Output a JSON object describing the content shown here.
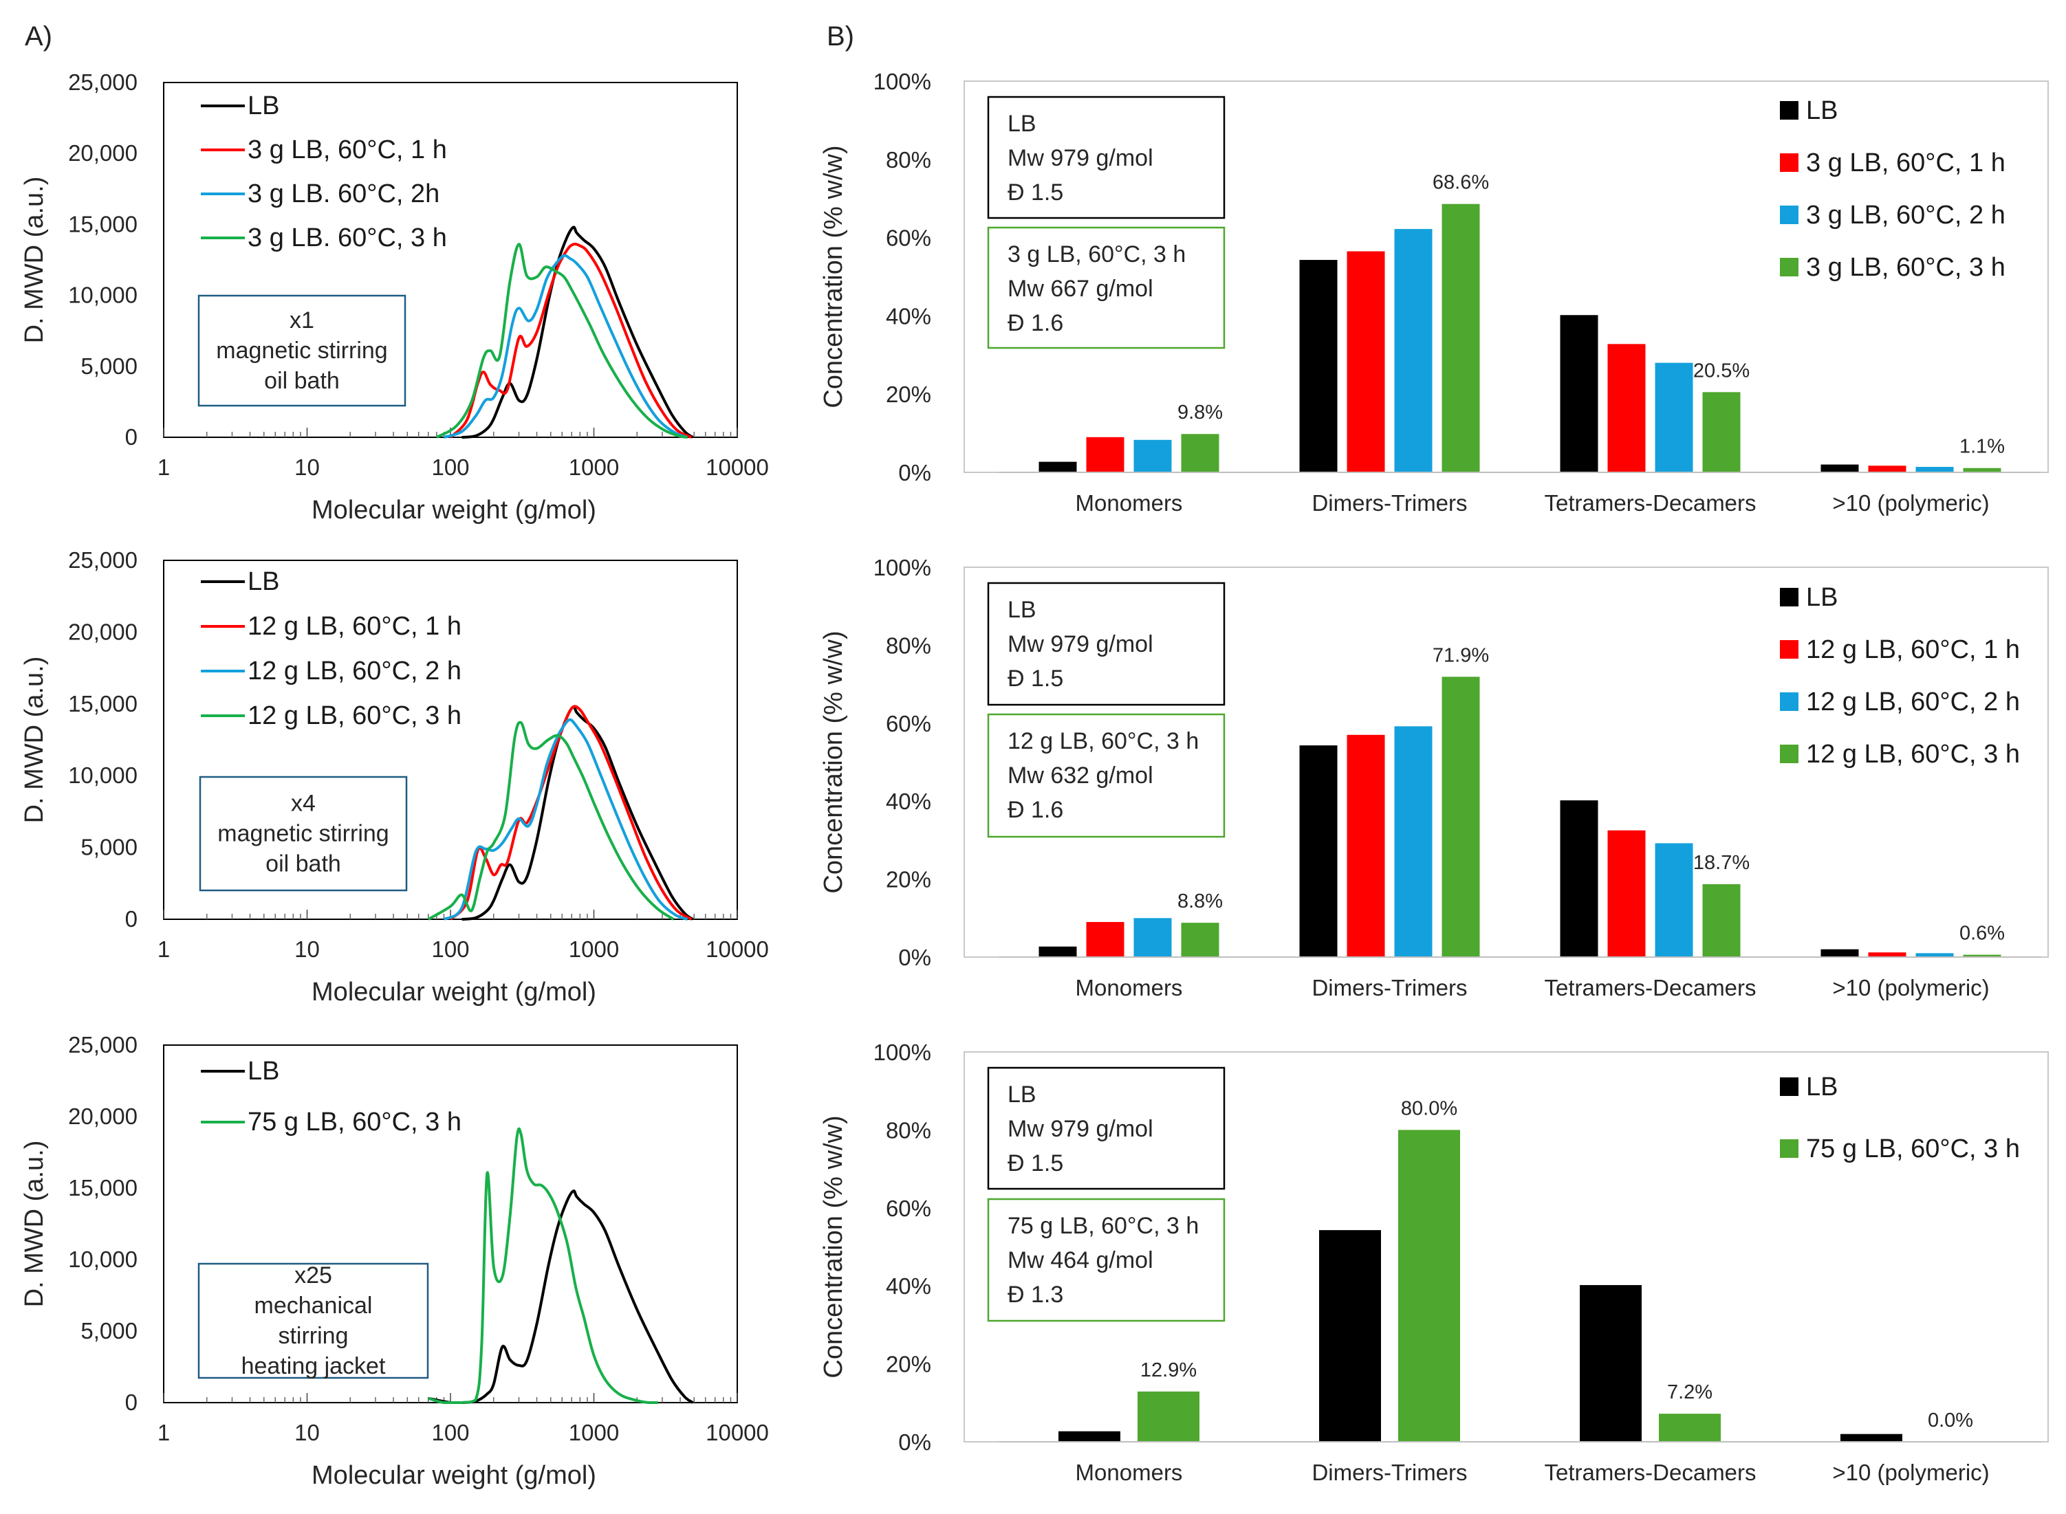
{
  "figure": {
    "panel_a_label": "A)",
    "panel_b_label": "B)"
  },
  "colors": {
    "LB": "#000000",
    "h1": "#ff0000",
    "h2": "#14a0dc",
    "h3_line": "#18b04a",
    "h3_bar": "#4ea72e",
    "box_stirring": "#1f5c82",
    "box_lb": "#000000",
    "box_result": "#4ea72e"
  },
  "chart_data": [
    {
      "id": "A1",
      "type": "line",
      "x_scale": "log",
      "xlabel": "Molecular weight (g/mol)",
      "ylabel": "D. MWD (a.u.)",
      "xlim": [
        1,
        10000
      ],
      "ylim": [
        0,
        25000
      ],
      "x_ticks": [
        "1",
        "10",
        "100",
        "1000",
        "10000"
      ],
      "y_ticks": [
        "0",
        "5,000",
        "10,000",
        "15,000",
        "20,000",
        "25,000"
      ],
      "annotation": [
        "x1",
        "magnetic stirring",
        "oil bath"
      ],
      "series": [
        {
          "name": "LB",
          "color": "#000000",
          "x": [
            120,
            150,
            180,
            200,
            230,
            260,
            300,
            340,
            400,
            480,
            560,
            650,
            720,
            760,
            850,
            1000,
            1200,
            1500,
            2000,
            2700,
            3500,
            4300,
            4900
          ],
          "y": [
            0,
            100,
            600,
            1300,
            2800,
            3800,
            2600,
            2900,
            5500,
            9500,
            12300,
            14100,
            14800,
            14400,
            13900,
            13300,
            12000,
            9500,
            6500,
            3800,
            1600,
            400,
            0
          ]
        },
        {
          "name": "3 g LB, 60°C, 1 h",
          "color": "#ff0000",
          "x": [
            100,
            130,
            155,
            170,
            190,
            220,
            250,
            300,
            340,
            400,
            480,
            560,
            650,
            720,
            800,
            900,
            1100,
            1400,
            1800,
            2300,
            3000,
            3800,
            4800
          ],
          "y": [
            0,
            1200,
            3800,
            4600,
            3700,
            3300,
            3400,
            7000,
            6400,
            7400,
            10000,
            12000,
            13200,
            13600,
            13500,
            13100,
            11700,
            9300,
            6500,
            3900,
            1800,
            500,
            0
          ]
        },
        {
          "name": "3 g LB. 60°C, 2h",
          "color": "#14a0dc",
          "x": [
            90,
            120,
            150,
            175,
            200,
            230,
            270,
            300,
            350,
            400,
            470,
            550,
            620,
            680,
            750,
            900,
            1100,
            1400,
            1800,
            2300,
            2900,
            3700,
            4500
          ],
          "y": [
            0,
            400,
            1500,
            2600,
            2800,
            4400,
            8000,
            9100,
            8200,
            9000,
            11200,
            12300,
            12800,
            12600,
            12300,
            11300,
            9300,
            6900,
            4500,
            2500,
            1100,
            300,
            0
          ]
        },
        {
          "name": "3 g LB. 60°C, 3 h",
          "color": "#18b04a",
          "x": [
            80,
            110,
            140,
            170,
            190,
            220,
            260,
            300,
            340,
            400,
            460,
            540,
            620,
            700,
            800,
            950,
            1150,
            1450,
            1850,
            2400,
            3100,
            3900,
            4500
          ],
          "y": [
            0,
            800,
            2500,
            5600,
            6100,
            5700,
            11000,
            13600,
            11400,
            11300,
            12000,
            11700,
            11300,
            10400,
            9300,
            7800,
            6000,
            4200,
            2600,
            1300,
            500,
            100,
            0
          ]
        }
      ]
    },
    {
      "id": "A2",
      "type": "line",
      "x_scale": "log",
      "xlabel": "Molecular weight (g/mol)",
      "ylabel": "D. MWD (a.u.)",
      "xlim": [
        1,
        10000
      ],
      "ylim": [
        0,
        25000
      ],
      "x_ticks": [
        "1",
        "10",
        "100",
        "1000",
        "10000"
      ],
      "y_ticks": [
        "0",
        "5,000",
        "10,000",
        "15,000",
        "20,000",
        "25,000"
      ],
      "annotation": [
        "x4",
        "magnetic stirring",
        "oil bath"
      ],
      "series": [
        {
          "name": "LB",
          "color": "#000000",
          "x": [
            120,
            150,
            180,
            200,
            230,
            260,
            300,
            340,
            400,
            480,
            560,
            650,
            720,
            760,
            850,
            1000,
            1200,
            1500,
            2000,
            2700,
            3500,
            4300,
            4900
          ],
          "y": [
            0,
            100,
            600,
            1300,
            2800,
            3800,
            2600,
            2900,
            5500,
            9500,
            12300,
            14100,
            14800,
            14400,
            13900,
            13300,
            12000,
            9500,
            6500,
            3800,
            1600,
            400,
            0
          ]
        },
        {
          "name": "12 g LB, 60°C, 1 h",
          "color": "#ff0000",
          "x": [
            100,
            130,
            155,
            175,
            200,
            225,
            250,
            300,
            340,
            400,
            480,
            560,
            650,
            720,
            800,
            900,
            1100,
            1400,
            1800,
            2300,
            3000,
            3800,
            4800
          ],
          "y": [
            0,
            1200,
            4800,
            4300,
            3100,
            3800,
            4000,
            6900,
            6700,
            8200,
            10500,
            12400,
            14100,
            14800,
            14600,
            13800,
            12300,
            9800,
            7000,
            4300,
            2000,
            600,
            0
          ]
        },
        {
          "name": "12 g LB, 60°C, 2 h",
          "color": "#14a0dc",
          "x": [
            90,
            120,
            150,
            175,
            200,
            230,
            270,
            300,
            350,
            400,
            470,
            550,
            620,
            680,
            750,
            900,
            1100,
            1400,
            1800,
            2300,
            2900,
            3700,
            4500
          ],
          "y": [
            0,
            800,
            4700,
            4900,
            4800,
            5300,
            6400,
            7000,
            6500,
            8000,
            10800,
            12600,
            13500,
            13900,
            13500,
            12300,
            10200,
            7600,
            5000,
            2800,
            1200,
            300,
            0
          ]
        },
        {
          "name": "12 g LB, 60°C, 3 h",
          "color": "#18b04a",
          "x": [
            70,
            100,
            120,
            140,
            160,
            180,
            200,
            240,
            280,
            310,
            350,
            400,
            480,
            560,
            640,
            720,
            850,
            1000,
            1250,
            1600,
            2100,
            2800,
            3600
          ],
          "y": [
            0,
            900,
            1700,
            600,
            2800,
            4700,
            5300,
            7200,
            12600,
            13700,
            12200,
            11900,
            12500,
            12800,
            12300,
            11300,
            9800,
            8100,
            5900,
            3800,
            2000,
            700,
            0
          ]
        }
      ]
    },
    {
      "id": "A3",
      "type": "line",
      "x_scale": "log",
      "xlabel": "Molecular weight (g/mol)",
      "ylabel": "D. MWD (a.u.)",
      "xlim": [
        1,
        10000
      ],
      "ylim": [
        0,
        25000
      ],
      "x_ticks": [
        "1",
        "10",
        "100",
        "1000",
        "10000"
      ],
      "y_ticks": [
        "0",
        "5,000",
        "10,000",
        "15,000",
        "20,000",
        "25,000"
      ],
      "annotation": [
        "x25",
        "mechanical",
        "stirring",
        "heating jacket"
      ],
      "series": [
        {
          "name": "LB",
          "color": "#000000",
          "x": [
            70,
            100,
            120,
            150,
            180,
            200,
            230,
            260,
            300,
            340,
            400,
            480,
            560,
            650,
            720,
            760,
            850,
            1000,
            1200,
            1500,
            2000,
            2700,
            3500,
            4300,
            4900
          ],
          "y": [
            300,
            0,
            0,
            100,
            600,
            1300,
            3900,
            3000,
            2600,
            2900,
            5500,
            9500,
            12300,
            14100,
            14800,
            14400,
            13900,
            13300,
            12000,
            9500,
            6500,
            3800,
            1600,
            400,
            0
          ]
        },
        {
          "name": "75 g LB, 60°C, 3 h",
          "color": "#18b04a",
          "x": [
            70,
            90,
            120,
            150,
            165,
            180,
            200,
            230,
            260,
            290,
            310,
            340,
            380,
            430,
            480,
            550,
            650,
            750,
            850,
            1000,
            1200,
            1500,
            1900,
            2400,
            2800
          ],
          "y": [
            300,
            0,
            0,
            200,
            4000,
            16000,
            9500,
            8800,
            13000,
            18500,
            18800,
            16300,
            15300,
            15200,
            14700,
            13500,
            11200,
            8000,
            6000,
            3300,
            1600,
            600,
            200,
            0,
            0
          ]
        }
      ]
    },
    {
      "id": "B1",
      "type": "bar",
      "ylabel": "Concentration (% w/w)",
      "ylim": [
        0,
        100
      ],
      "y_ticks": [
        "0%",
        "20%",
        "40%",
        "60%",
        "80%",
        "100%"
      ],
      "categories": [
        "Monomers",
        "Dimers-Trimers",
        "Tetramers-Decamers",
        ">10 (polymeric)"
      ],
      "series": [
        {
          "name": "LB",
          "color": "#000000",
          "values": [
            2.7,
            54.3,
            40.2,
            2.0
          ]
        },
        {
          "name": "3 g LB, 60°C, 1 h",
          "color": "#ff0000",
          "values": [
            9.0,
            56.5,
            32.8,
            1.7
          ]
        },
        {
          "name": "3 g LB, 60°C, 2 h",
          "color": "#14a0dc",
          "values": [
            8.3,
            62.2,
            28.0,
            1.4
          ]
        },
        {
          "name": "3 g LB, 60°C, 3 h",
          "color": "#4ea72e",
          "values": [
            9.8,
            68.6,
            20.5,
            1.1
          ]
        }
      ],
      "data_labels": [
        "9.8%",
        "68.6%",
        "20.5%",
        "1.1%"
      ],
      "info_boxes": [
        {
          "lines": [
            "LB",
            "Mw 979 g/mol",
            "Đ 1.5"
          ]
        },
        {
          "lines": [
            "3 g LB, 60°C, 3 h",
            "Mw 667 g/mol",
            "Đ 1.6"
          ]
        }
      ]
    },
    {
      "id": "B2",
      "type": "bar",
      "ylabel": "Concentration (% w/w)",
      "ylim": [
        0,
        100
      ],
      "y_ticks": [
        "0%",
        "20%",
        "40%",
        "60%",
        "80%",
        "100%"
      ],
      "categories": [
        "Monomers",
        "Dimers-Trimers",
        "Tetramers-Decamers",
        ">10 (polymeric)"
      ],
      "series": [
        {
          "name": "LB",
          "color": "#000000",
          "values": [
            2.7,
            54.3,
            40.2,
            2.0
          ]
        },
        {
          "name": "12 g LB, 60°C, 1 h",
          "color": "#ff0000",
          "values": [
            9.0,
            57.0,
            32.5,
            1.2
          ]
        },
        {
          "name": "12 g LB, 60°C, 2 h",
          "color": "#14a0dc",
          "values": [
            10.0,
            59.2,
            29.2,
            1.0
          ]
        },
        {
          "name": "12 g LB, 60°C, 3 h",
          "color": "#4ea72e",
          "values": [
            8.8,
            71.9,
            18.7,
            0.6
          ]
        }
      ],
      "data_labels": [
        "8.8%",
        "71.9%",
        "18.7%",
        "0.6%"
      ],
      "info_boxes": [
        {
          "lines": [
            "LB",
            "Mw 979 g/mol",
            "Đ 1.5"
          ]
        },
        {
          "lines": [
            "12 g LB, 60°C, 3 h",
            "Mw 632 g/mol",
            "Đ 1.6"
          ]
        }
      ]
    },
    {
      "id": "B3",
      "type": "bar",
      "ylabel": "Concentration (% w/w)",
      "ylim": [
        0,
        100
      ],
      "y_ticks": [
        "0%",
        "20%",
        "40%",
        "60%",
        "80%",
        "100%"
      ],
      "categories": [
        "Monomers",
        "Dimers-Trimers",
        "Tetramers-Decamers",
        ">10 (polymeric)"
      ],
      "series": [
        {
          "name": "LB",
          "color": "#000000",
          "values": [
            2.7,
            54.3,
            40.2,
            2.0
          ]
        },
        {
          "name": "75 g LB, 60°C, 3 h",
          "color": "#4ea72e",
          "values": [
            12.9,
            80.0,
            7.2,
            0.0
          ]
        }
      ],
      "data_labels": [
        "12.9%",
        "80.0%",
        "7.2%",
        "0.0%"
      ],
      "info_boxes": [
        {
          "lines": [
            "LB",
            "Mw 979 g/mol",
            "Đ 1.5"
          ]
        },
        {
          "lines": [
            "75 g LB, 60°C, 3 h",
            "Mw 464 g/mol",
            "Đ 1.3"
          ]
        }
      ]
    }
  ]
}
